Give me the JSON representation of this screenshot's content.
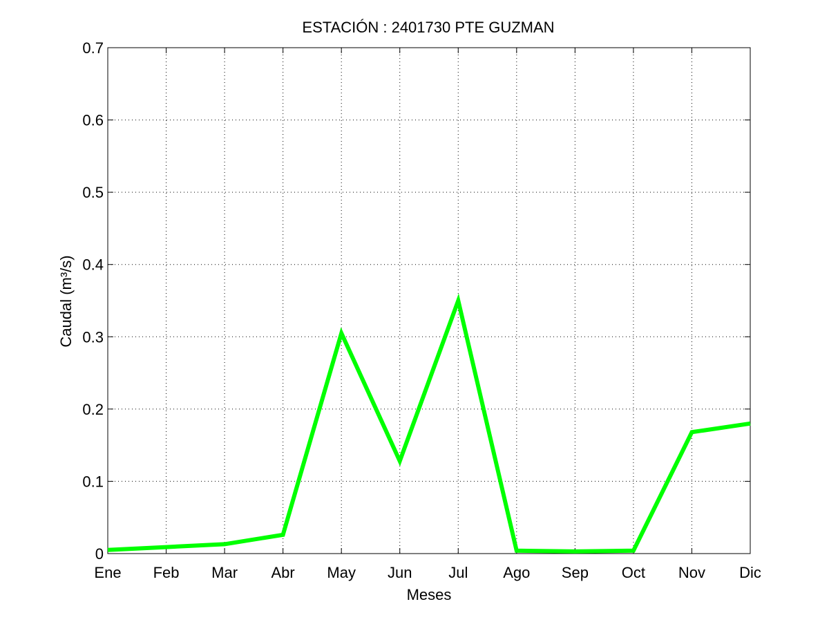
{
  "chart_data": {
    "type": "line",
    "title": "ESTACIÓN :  2401730  PTE GUZMAN",
    "xlabel": "Meses",
    "ylabel": "Caudal (m³/s)",
    "categories": [
      "Ene",
      "Feb",
      "Mar",
      "Abr",
      "May",
      "Jun",
      "Jul",
      "Ago",
      "Sep",
      "Oct",
      "Nov",
      "Dic"
    ],
    "yticks": [
      "0",
      "0.1",
      "0.2",
      "0.3",
      "0.4",
      "0.5",
      "0.6",
      "0.7"
    ],
    "ylim": [
      0,
      0.7
    ],
    "grid": true,
    "series": [
      {
        "values": [
          0.005,
          0.009,
          0.013,
          0.026,
          0.305,
          0.128,
          0.35,
          0.004,
          0.003,
          0.004,
          0.168,
          0.18
        ],
        "color": "#00ff00"
      }
    ]
  }
}
